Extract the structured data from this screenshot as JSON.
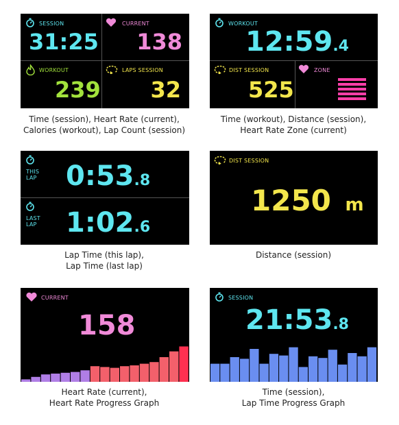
{
  "panel1": {
    "session_label": "SESSION",
    "session_value": "31:25",
    "current_label": "CURRENT",
    "current_value": "138",
    "workout_label": "WORKOUT",
    "workout_value": "239",
    "laps_label": "LAPS SESSION",
    "laps_value": "32",
    "caption_lines": [
      "Time (session), Heart Rate (current),",
      "Calories (workout), Lap Count (session)"
    ]
  },
  "panel2": {
    "workout_label": "WORKOUT",
    "time_main": "12:59",
    "time_decimal": ".4",
    "dist_label": "DIST SESSION",
    "dist_value": "525",
    "zone_label": "ZONE",
    "zone_level": 5,
    "caption_lines": [
      "Time (workout), Distance (session),",
      "Heart Rate Zone (current)"
    ]
  },
  "panel3": {
    "this_lap_label": [
      "THIS",
      "LAP"
    ],
    "this_lap_main": "0:53",
    "this_lap_decimal": ".8",
    "last_lap_label": [
      "LAST",
      "LAP"
    ],
    "last_lap_main": "1:02",
    "last_lap_decimal": ".6",
    "caption_lines": [
      "Lap Time (this lap),",
      "Lap Time (last lap)"
    ]
  },
  "panel4": {
    "dist_label": "DIST SESSION",
    "value": "1250",
    "unit": "m",
    "caption_lines": [
      "Distance (session)"
    ]
  },
  "panel5": {
    "current_label": "CURRENT",
    "value": "158",
    "graph_values": [
      3,
      6,
      9,
      10,
      11,
      12,
      14,
      19,
      18,
      17,
      19,
      20,
      22,
      24,
      30,
      37,
      43
    ],
    "graph_colors": [
      "#b07ee6",
      "#b07ee6",
      "#b07ee6",
      "#b07ee6",
      "#b07ee6",
      "#b07ee6",
      "#b07ee6",
      "#f3606b",
      "#f3606b",
      "#f3606b",
      "#f3606b",
      "#f3606b",
      "#f3606b",
      "#f3606b",
      "#f3606b",
      "#f3606b",
      "#ff3050"
    ],
    "caption_lines": [
      "Heart Rate (current),",
      "Heart Rate Progress Graph"
    ]
  },
  "panel6": {
    "session_label": "SESSION",
    "time_main": "21:53",
    "time_decimal": ".8",
    "graph_values": [
      22,
      22,
      30,
      28,
      40,
      22,
      34,
      32,
      42,
      18,
      31,
      29,
      39,
      21,
      35,
      31,
      42
    ],
    "graph_color": "#6a8ef0",
    "caption_lines": [
      "Time (session),",
      "Lap Time Progress Graph"
    ]
  }
}
